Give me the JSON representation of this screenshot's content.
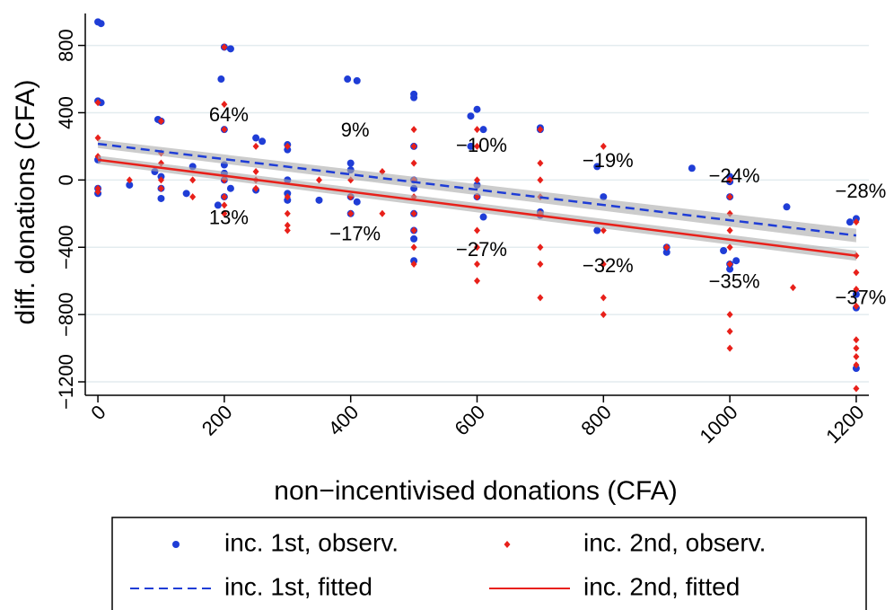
{
  "chart_data": {
    "type": "scatter",
    "ylabel": "diff. donations (CFA)",
    "xlabel": "non−incentivised donations (CFA)",
    "xlim": [
      -20,
      1220
    ],
    "ylim": [
      -1280,
      990
    ],
    "xticks": [
      0,
      200,
      400,
      600,
      800,
      1000,
      1200
    ],
    "yticks": [
      {
        "value": -1200,
        "label": "−1200"
      },
      {
        "value": -800,
        "label": "−800"
      },
      {
        "value": -400,
        "label": "−400"
      },
      0,
      400,
      800
    ],
    "grid": true,
    "series": [
      {
        "name": "inc. 1st, observ.",
        "type": "scatter",
        "marker": "circle",
        "color": "#1f3dd6",
        "x": [
          0,
          5,
          0,
          5,
          0,
          0,
          0,
          50,
          95,
          100,
          90,
          100,
          100,
          100,
          150,
          140,
          195,
          200,
          210,
          200,
          200,
          200,
          200,
          200,
          210,
          190,
          250,
          260,
          250,
          300,
          300,
          300,
          300,
          300,
          350,
          395,
          410,
          400,
          400,
          400,
          410,
          400,
          500,
          500,
          500,
          500,
          500,
          500,
          500,
          500,
          500,
          590,
          600,
          610,
          590,
          600,
          610,
          600,
          700,
          700,
          700,
          700,
          790,
          800,
          790,
          900,
          900,
          940,
          1000,
          1000,
          990,
          1000,
          1000,
          1010,
          1000,
          1090,
          1200,
          1190,
          1200,
          1200,
          1200
        ],
        "values": [
          940,
          930,
          470,
          460,
          120,
          -80,
          -50,
          -30,
          360,
          350,
          50,
          -50,
          -110,
          20,
          80,
          -80,
          600,
          790,
          780,
          300,
          90,
          0,
          -100,
          40,
          -50,
          -150,
          250,
          230,
          -60,
          210,
          180,
          0,
          -80,
          -120,
          -120,
          600,
          590,
          100,
          60,
          -200,
          -130,
          -100,
          510,
          490,
          200,
          0,
          -50,
          -200,
          -300,
          -350,
          -480,
          380,
          420,
          300,
          200,
          -100,
          -220,
          -30,
          310,
          300,
          -190,
          -210,
          80,
          -100,
          -300,
          -400,
          -430,
          70,
          20,
          -10,
          -420,
          -500,
          -530,
          -480,
          -100,
          -160,
          -230,
          -250,
          -680,
          -760,
          -1120
        ]
      },
      {
        "name": "inc. 2nd, observ.",
        "type": "scatter",
        "marker": "diamond",
        "color": "#e8201a",
        "x": [
          0,
          0,
          0,
          0,
          0,
          50,
          100,
          100,
          100,
          100,
          100,
          150,
          150,
          200,
          200,
          200,
          200,
          200,
          200,
          200,
          250,
          250,
          250,
          250,
          300,
          300,
          300,
          300,
          300,
          350,
          400,
          400,
          400,
          450,
          450,
          500,
          500,
          500,
          500,
          500,
          500,
          500,
          500,
          500,
          600,
          600,
          600,
          600,
          600,
          600,
          600,
          600,
          700,
          700,
          700,
          700,
          700,
          700,
          700,
          700,
          800,
          800,
          800,
          800,
          800,
          900,
          1000,
          1000,
          1000,
          1000,
          1000,
          1000,
          1000,
          1000,
          1000,
          1100,
          1200,
          1200,
          1200,
          1200,
          1200,
          1200,
          1200,
          1200,
          1200,
          1200
        ],
        "values": [
          460,
          250,
          140,
          -50,
          -70,
          0,
          350,
          160,
          100,
          0,
          -50,
          -100,
          0,
          790,
          450,
          300,
          0,
          -100,
          -200,
          -150,
          200,
          50,
          0,
          -50,
          200,
          -100,
          -200,
          -300,
          -270,
          0,
          0,
          -100,
          -200,
          50,
          -200,
          300,
          200,
          100,
          0,
          -100,
          -200,
          -300,
          -400,
          -500,
          300,
          200,
          0,
          -100,
          -300,
          -400,
          -500,
          -600,
          300,
          100,
          0,
          -100,
          -200,
          -400,
          -500,
          -700,
          200,
          -300,
          -500,
          -700,
          -800,
          -400,
          0,
          -100,
          -200,
          -300,
          -400,
          -500,
          -800,
          -900,
          -1000,
          -640,
          -250,
          -450,
          -550,
          -650,
          -750,
          -950,
          -1000,
          -1050,
          -1100,
          -1240
        ]
      },
      {
        "name": "inc. 1st, fitted",
        "type": "line",
        "dash": true,
        "color": "#1f3dd6",
        "x": [
          0,
          1200
        ],
        "values": [
          215,
          -330
        ],
        "ci_lower": [
          190,
          -370
        ],
        "ci_upper": [
          240,
          -290
        ]
      },
      {
        "name": "inc. 2nd, fitted",
        "type": "line",
        "dash": false,
        "color": "#e8201a",
        "x": [
          0,
          1200
        ],
        "values": [
          120,
          -450
        ],
        "ci_lower": [
          95,
          -480
        ],
        "ci_upper": [
          145,
          -420
        ]
      }
    ],
    "annotations": {
      "x": [
        200,
        400,
        600,
        800,
        1000,
        1200
      ],
      "inc_1st": [
        "64%",
        "9%",
        "−10%",
        "−19%",
        "−24%",
        "−28%"
      ],
      "inc_2nd": [
        "13%",
        "−17%",
        "−27%",
        "−32%",
        "−35%",
        "−37%"
      ]
    }
  }
}
